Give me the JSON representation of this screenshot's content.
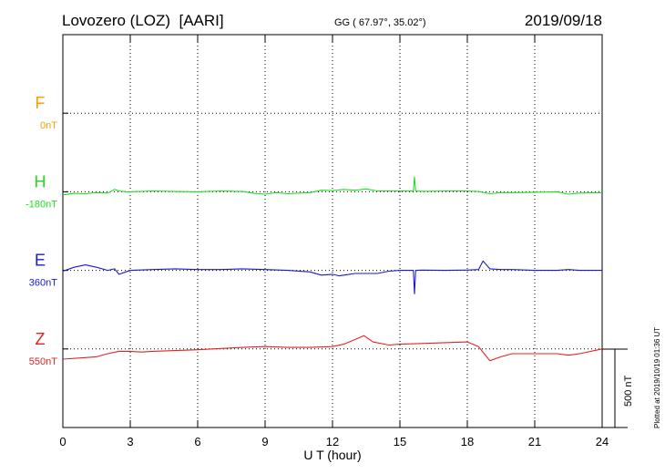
{
  "header": {
    "station": "Lovozero (LOZ)  [AARI]",
    "coords": "GG ( 67.97°,  35.02°)",
    "date": "2019/09/18"
  },
  "plotted_note": "Plotted at 2019/10/19 01:36 UT",
  "chart_data": {
    "type": "line",
    "xlabel": "U T (hour)",
    "xlim": [
      0,
      24
    ],
    "xticks": [
      "0",
      "3",
      "6",
      "9",
      "12",
      "15",
      "18",
      "21",
      "24"
    ],
    "scale_bar": {
      "label": "500 nT",
      "value": 500
    },
    "channels": [
      {
        "name": "F",
        "offset_label": "0nT",
        "color": "#f5a000",
        "baseline_row": 1,
        "x": [],
        "y": []
      },
      {
        "name": "H",
        "offset_label": "-180nT",
        "color": "#22dd22",
        "baseline_row": 2,
        "x": [
          0,
          0.5,
          1,
          1.5,
          2,
          2.3,
          2.5,
          2.8,
          3,
          4,
          5,
          6,
          7,
          8,
          8.5,
          9,
          9.5,
          10,
          11,
          11.5,
          12,
          12.5,
          13,
          13.5,
          14,
          15,
          15.6,
          15.65,
          15.7,
          16,
          17,
          18,
          18.5,
          19,
          19.5,
          20,
          21,
          22,
          22.5,
          23,
          24
        ],
        "y": [
          -20,
          -10,
          -12,
          -5,
          -8,
          15,
          5,
          0,
          0,
          5,
          2,
          0,
          5,
          2,
          -10,
          -15,
          -5,
          -12,
          -5,
          10,
          8,
          15,
          10,
          18,
          5,
          5,
          5,
          95,
          5,
          3,
          5,
          5,
          2,
          -12,
          -5,
          -5,
          -3,
          0,
          -15,
          -8,
          -5
        ]
      },
      {
        "name": "E",
        "offset_label": "360nT",
        "color": "#1a1acc",
        "baseline_row": 3,
        "x": [
          0,
          0.5,
          1,
          1.5,
          2,
          2.3,
          2.5,
          2.8,
          3,
          4,
          5,
          6,
          7,
          8,
          9,
          10,
          11,
          11.5,
          12,
          12.3,
          13,
          14,
          14.5,
          15,
          15.6,
          15.65,
          15.7,
          16,
          17,
          18,
          18.5,
          18.7,
          19,
          19.5,
          20,
          21,
          22,
          22.5,
          23,
          24
        ],
        "y": [
          -5,
          20,
          35,
          20,
          0,
          10,
          -25,
          -10,
          0,
          5,
          10,
          5,
          5,
          10,
          5,
          0,
          -10,
          -30,
          -25,
          -35,
          -20,
          -20,
          -5,
          0,
          0,
          -150,
          0,
          2,
          0,
          2,
          5,
          60,
          10,
          5,
          5,
          0,
          0,
          5,
          0,
          0
        ]
      },
      {
        "name": "Z",
        "offset_label": "550nT",
        "color": "#e82020",
        "baseline_row": 4,
        "x": [
          0,
          1,
          1.5,
          2,
          2.5,
          3,
          3.5,
          4,
          6,
          8,
          9,
          10,
          11,
          12,
          12.5,
          13,
          13.4,
          13.8,
          14.5,
          15,
          16,
          17,
          18,
          18.5,
          19,
          19.5,
          20,
          21,
          22,
          22.5,
          23,
          24
        ],
        "y": [
          -65,
          -55,
          -50,
          -30,
          -15,
          -15,
          -20,
          -15,
          -5,
          10,
          15,
          10,
          10,
          15,
          30,
          60,
          85,
          45,
          25,
          30,
          35,
          40,
          45,
          15,
          -75,
          -50,
          -30,
          -30,
          -30,
          -40,
          -30,
          0
        ]
      }
    ]
  }
}
